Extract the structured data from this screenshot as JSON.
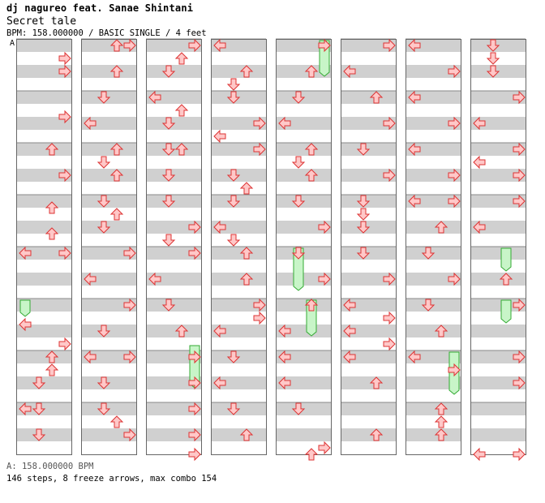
{
  "header": {
    "artist": "dj nagureo feat. Sanae Shintani",
    "song_title": "Secret tale",
    "info": "BPM: 158.000000 / BASIC SINGLE / 4 feet",
    "bpm_marker": "A"
  },
  "footer": {
    "bpm_legend": "A: 158.000000 BPM",
    "stats": "146 steps, 8 freeze arrows, max combo 154"
  },
  "colors": {
    "arrow_fill": "#ffc8c8",
    "arrow_stroke": "#dd3333",
    "freeze_fill": "#c8f5c8",
    "freeze_stroke": "#33aa33",
    "stripe": "#d0d0d0",
    "column_border": "#666666"
  },
  "chart_data": {
    "type": "step-chart",
    "columns": 8,
    "measures_per_column": 8,
    "rows_per_measure": 8,
    "lanes": [
      "left",
      "down",
      "up",
      "right"
    ],
    "notes": [
      [
        0,
        0,
        2,
        3
      ],
      [
        0,
        0,
        4,
        3
      ],
      [
        0,
        2,
        0,
        2
      ],
      [
        0,
        2,
        4,
        3
      ],
      [
        0,
        3,
        1,
        2
      ],
      [
        0,
        3,
        5,
        2
      ],
      [
        0,
        4,
        0,
        0
      ],
      [
        0,
        4,
        0,
        3
      ],
      [
        0,
        5,
        3,
        0
      ],
      [
        0,
        6,
        0,
        2
      ],
      [
        0,
        6,
        2,
        2
      ],
      [
        0,
        6,
        4,
        1
      ],
      [
        0,
        7,
        0,
        0
      ],
      [
        0,
        7,
        0,
        1
      ],
      [
        0,
        7,
        4,
        1
      ],
      [
        0,
        1,
        3,
        3
      ],
      [
        0,
        5,
        6,
        3
      ],
      [
        1,
        0,
        0,
        2
      ],
      [
        1,
        0,
        0,
        3
      ],
      [
        1,
        0,
        4,
        2
      ],
      [
        1,
        1,
        0,
        1
      ],
      [
        1,
        1,
        4,
        0
      ],
      [
        1,
        2,
        0,
        2
      ],
      [
        1,
        2,
        2,
        1
      ],
      [
        1,
        2,
        4,
        2
      ],
      [
        1,
        3,
        0,
        1
      ],
      [
        1,
        3,
        2,
        2
      ],
      [
        1,
        3,
        4,
        1
      ],
      [
        1,
        4,
        0,
        3
      ],
      [
        1,
        4,
        4,
        0
      ],
      [
        1,
        5,
        0,
        3
      ],
      [
        1,
        6,
        0,
        0
      ],
      [
        1,
        6,
        0,
        3
      ],
      [
        1,
        6,
        4,
        1
      ],
      [
        1,
        7,
        0,
        1
      ],
      [
        1,
        7,
        2,
        2
      ],
      [
        1,
        7,
        4,
        3
      ],
      [
        1,
        5,
        4,
        1
      ],
      [
        2,
        0,
        0,
        3
      ],
      [
        2,
        0,
        2,
        2
      ],
      [
        2,
        0,
        4,
        1
      ],
      [
        2,
        1,
        0,
        0
      ],
      [
        2,
        1,
        2,
        2
      ],
      [
        2,
        1,
        4,
        1
      ],
      [
        2,
        2,
        0,
        1
      ],
      [
        2,
        2,
        0,
        2
      ],
      [
        2,
        2,
        4,
        1
      ],
      [
        2,
        3,
        0,
        1
      ],
      [
        2,
        3,
        4,
        3
      ],
      [
        2,
        3,
        6,
        1
      ],
      [
        2,
        4,
        0,
        3
      ],
      [
        2,
        4,
        4,
        0
      ],
      [
        2,
        5,
        0,
        1
      ],
      [
        2,
        5,
        4,
        2
      ],
      [
        2,
        6,
        0,
        3
      ],
      [
        2,
        6,
        4,
        3
      ],
      [
        2,
        7,
        0,
        3
      ],
      [
        2,
        7,
        4,
        3
      ],
      [
        2,
        7,
        7,
        3
      ],
      [
        3,
        0,
        0,
        0
      ],
      [
        3,
        0,
        4,
        2
      ],
      [
        3,
        0,
        6,
        1
      ],
      [
        3,
        1,
        0,
        1
      ],
      [
        3,
        1,
        4,
        3
      ],
      [
        3,
        1,
        6,
        0
      ],
      [
        3,
        2,
        0,
        3
      ],
      [
        3,
        2,
        4,
        1
      ],
      [
        3,
        2,
        6,
        2
      ],
      [
        3,
        3,
        0,
        1
      ],
      [
        3,
        3,
        4,
        0
      ],
      [
        3,
        3,
        6,
        1
      ],
      [
        3,
        4,
        0,
        2
      ],
      [
        3,
        4,
        4,
        2
      ],
      [
        3,
        5,
        0,
        3
      ],
      [
        3,
        5,
        4,
        0
      ],
      [
        3,
        6,
        0,
        1
      ],
      [
        3,
        6,
        4,
        0
      ],
      [
        3,
        7,
        0,
        1
      ],
      [
        3,
        7,
        4,
        2
      ],
      [
        3,
        5,
        2,
        3
      ],
      [
        4,
        0,
        0,
        3
      ],
      [
        4,
        0,
        4,
        2
      ],
      [
        4,
        1,
        0,
        1
      ],
      [
        4,
        1,
        4,
        0
      ],
      [
        4,
        2,
        0,
        2
      ],
      [
        4,
        2,
        2,
        1
      ],
      [
        4,
        2,
        4,
        2
      ],
      [
        4,
        3,
        0,
        1
      ],
      [
        4,
        3,
        4,
        3
      ],
      [
        4,
        4,
        0,
        1
      ],
      [
        4,
        4,
        4,
        3
      ],
      [
        4,
        5,
        0,
        2
      ],
      [
        4,
        5,
        4,
        0
      ],
      [
        4,
        6,
        0,
        0
      ],
      [
        4,
        6,
        4,
        0
      ],
      [
        4,
        7,
        0,
        1
      ],
      [
        4,
        7,
        7,
        2
      ],
      [
        4,
        7,
        6,
        3
      ],
      [
        5,
        0,
        0,
        3
      ],
      [
        5,
        0,
        4,
        0
      ],
      [
        5,
        1,
        0,
        2
      ],
      [
        5,
        1,
        4,
        3
      ],
      [
        5,
        2,
        0,
        1
      ],
      [
        5,
        2,
        4,
        3
      ],
      [
        5,
        3,
        0,
        1
      ],
      [
        5,
        3,
        2,
        1
      ],
      [
        5,
        3,
        4,
        1
      ],
      [
        5,
        4,
        0,
        1
      ],
      [
        5,
        4,
        4,
        3
      ],
      [
        5,
        5,
        0,
        0
      ],
      [
        5,
        5,
        2,
        3
      ],
      [
        5,
        5,
        4,
        0
      ],
      [
        5,
        6,
        0,
        0
      ],
      [
        5,
        6,
        4,
        2
      ],
      [
        5,
        7,
        4,
        2
      ],
      [
        5,
        5,
        6,
        3
      ],
      [
        6,
        0,
        0,
        0
      ],
      [
        6,
        0,
        4,
        3
      ],
      [
        6,
        1,
        0,
        0
      ],
      [
        6,
        1,
        4,
        3
      ],
      [
        6,
        2,
        0,
        0
      ],
      [
        6,
        2,
        4,
        3
      ],
      [
        6,
        3,
        0,
        0
      ],
      [
        6,
        3,
        0,
        3
      ],
      [
        6,
        3,
        4,
        2
      ],
      [
        6,
        4,
        0,
        1
      ],
      [
        6,
        4,
        4,
        3
      ],
      [
        6,
        5,
        0,
        1
      ],
      [
        6,
        5,
        4,
        2
      ],
      [
        6,
        6,
        0,
        0
      ],
      [
        6,
        6,
        2,
        3
      ],
      [
        6,
        7,
        0,
        2
      ],
      [
        6,
        7,
        2,
        2
      ],
      [
        6,
        7,
        4,
        2
      ],
      [
        7,
        0,
        0,
        1
      ],
      [
        7,
        0,
        2,
        1
      ],
      [
        7,
        0,
        4,
        1
      ],
      [
        7,
        1,
        0,
        3
      ],
      [
        7,
        1,
        4,
        0
      ],
      [
        7,
        2,
        0,
        3
      ],
      [
        7,
        2,
        2,
        0
      ],
      [
        7,
        2,
        4,
        3
      ],
      [
        7,
        3,
        0,
        3
      ],
      [
        7,
        3,
        4,
        0
      ],
      [
        7,
        4,
        4,
        2
      ],
      [
        7,
        5,
        0,
        3
      ],
      [
        7,
        6,
        0,
        3
      ],
      [
        7,
        6,
        4,
        3
      ],
      [
        7,
        7,
        7,
        0
      ],
      [
        7,
        7,
        7,
        3
      ]
    ],
    "freezes": [
      [
        0,
        5,
        0,
        0,
        2
      ],
      [
        2,
        5,
        7,
        3,
        6
      ],
      [
        4,
        0,
        0,
        3,
        5
      ],
      [
        4,
        4,
        0,
        1,
        6
      ],
      [
        4,
        5,
        0,
        2,
        5
      ],
      [
        6,
        6,
        0,
        3,
        6
      ],
      [
        7,
        4,
        0,
        2,
        3
      ],
      [
        7,
        5,
        0,
        2,
        3
      ]
    ]
  }
}
